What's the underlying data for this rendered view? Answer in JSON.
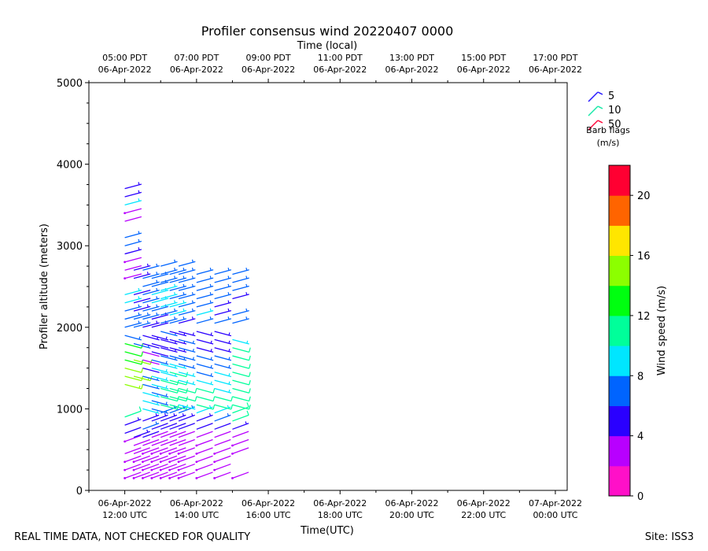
{
  "chart_data": {
    "type": "wind_barbs",
    "title": "Profiler consensus wind 20220407 0000",
    "xlabel": "Time(UTC)",
    "xlabel_top": "Time (local)",
    "ylabel": "Profiler altitude (meters)",
    "ylim": [
      0,
      5000
    ],
    "yticks": [
      0,
      1000,
      2000,
      3000,
      4000,
      5000
    ],
    "ytick_labels": [
      "0",
      "1000",
      "2000",
      "3000",
      "4000",
      "5000"
    ],
    "xlim_hours_utc": [
      11.0,
      24.33
    ],
    "xticks_hours_utc": [
      12,
      14,
      16,
      18,
      20,
      22,
      24
    ],
    "xtick_labels_bottom": [
      [
        "06-Apr-2022",
        "12:00 UTC"
      ],
      [
        "06-Apr-2022",
        "14:00 UTC"
      ],
      [
        "06-Apr-2022",
        "16:00 UTC"
      ],
      [
        "06-Apr-2022",
        "18:00 UTC"
      ],
      [
        "06-Apr-2022",
        "20:00 UTC"
      ],
      [
        "06-Apr-2022",
        "22:00 UTC"
      ],
      [
        "07-Apr-2022",
        "00:00 UTC"
      ]
    ],
    "xtick_labels_top": [
      [
        "05:00 PDT",
        "06-Apr-2022"
      ],
      [
        "07:00 PDT",
        "06-Apr-2022"
      ],
      [
        "09:00 PDT",
        "06-Apr-2022"
      ],
      [
        "11:00 PDT",
        "06-Apr-2022"
      ],
      [
        "13:00 PDT",
        "06-Apr-2022"
      ],
      [
        "15:00 PDT",
        "06-Apr-2022"
      ],
      [
        "17:00 PDT",
        "06-Apr-2022"
      ]
    ],
    "barb_legend": {
      "entries": [
        {
          "label": "5",
          "color": "#2a1cff"
        },
        {
          "label": "10",
          "color": "#19e8a8"
        },
        {
          "label": "50",
          "color": "#ff0a3c"
        }
      ],
      "caption_line1": "Barb flags",
      "caption_line2": "(m/s)"
    },
    "colorbar": {
      "label": "Wind speed (m/s)",
      "range": [
        0,
        22
      ],
      "ticks": [
        0,
        4,
        8,
        12,
        16,
        20
      ],
      "tick_labels": [
        "0",
        "4",
        "8",
        "12",
        "16",
        "20"
      ],
      "colors": [
        "#ff10c8",
        "#b800ff",
        "#2a00ff",
        "#0064ff",
        "#00e6ff",
        "#00ff9a",
        "#00ff10",
        "#8cff00",
        "#ffe600",
        "#ff6400",
        "#ff0032"
      ]
    },
    "series": [
      {
        "time_utc": 12.0,
        "altitudes": [
          150,
          250,
          350,
          450,
          600,
          700,
          800,
          900,
          1300,
          1400,
          1500,
          1600,
          1700,
          1800,
          1900,
          2000,
          2100,
          2200,
          2300,
          2400,
          2600,
          2700,
          2800,
          2900,
          3000,
          3100,
          3300,
          3400,
          3500,
          3600,
          3700
        ],
        "speeds": [
          2,
          2,
          2,
          3,
          2,
          4,
          5,
          11,
          15,
          14,
          14,
          13,
          12,
          12,
          6,
          7,
          6,
          7,
          8,
          9,
          2,
          3,
          2,
          5,
          6,
          6,
          3,
          2,
          8,
          5,
          5
        ]
      },
      {
        "time_utc": 12.25,
        "altitudes": [
          150,
          250,
          350,
          450,
          550,
          650,
          1400,
          1600,
          1800,
          2000,
          2100,
          2200,
          2300,
          2400,
          2600,
          2700
        ],
        "speeds": [
          2,
          2,
          2,
          3,
          3,
          5,
          15,
          14,
          6,
          6,
          6,
          5,
          4,
          4,
          5,
          5
        ]
      },
      {
        "time_utc": 12.5,
        "altitudes": [
          150,
          250,
          350,
          450,
          550,
          650,
          750,
          850,
          1000,
          1100,
          1200,
          1300,
          1400,
          1500,
          1600,
          1700,
          1800,
          1900,
          2000,
          2100,
          2200,
          2300,
          2400,
          2500,
          2600,
          2700
        ],
        "speeds": [
          2,
          2,
          2,
          2,
          3,
          4,
          6,
          5,
          9,
          9,
          8,
          7,
          6,
          4,
          3,
          3,
          4,
          5,
          5,
          6,
          6,
          6,
          7,
          7,
          6,
          6
        ]
      },
      {
        "time_utc": 12.75,
        "altitudes": [
          150,
          250,
          350,
          450,
          550,
          650,
          750,
          850,
          1000,
          1100,
          1200,
          1300,
          1400,
          1500,
          1600,
          1700,
          1800,
          1900,
          2000,
          2100,
          2200,
          2300,
          2400,
          2500,
          2600
        ],
        "speeds": [
          2,
          2,
          2,
          2,
          3,
          3,
          4,
          5,
          7,
          6,
          6,
          8,
          9,
          9,
          6,
          4,
          4,
          5,
          5,
          5,
          6,
          8,
          8,
          7,
          6
        ]
      },
      {
        "time_utc": 13.0,
        "altitudes": [
          150,
          250,
          350,
          450,
          550,
          650,
          750,
          850,
          950,
          1050,
          1150,
          1250,
          1350,
          1450,
          1550,
          1650,
          1750,
          1850,
          1950,
          2050,
          2150,
          2250,
          2350,
          2450,
          2550,
          2650,
          2750
        ],
        "speeds": [
          2,
          2,
          2,
          2,
          3,
          3,
          4,
          5,
          7,
          10,
          11,
          10,
          10,
          9,
          8,
          6,
          5,
          5,
          6,
          6,
          6,
          8,
          8,
          9,
          7,
          6,
          6
        ]
      },
      {
        "time_utc": 13.25,
        "altitudes": [
          150,
          250,
          350,
          450,
          550,
          650,
          750,
          850,
          950,
          1050,
          1150,
          1250,
          1350,
          1450,
          1550,
          1650,
          1750,
          1850,
          1950,
          2050,
          2150,
          2250,
          2350,
          2450,
          2550,
          2650
        ],
        "speeds": [
          2,
          2,
          2,
          2,
          3,
          3,
          4,
          5,
          7,
          10,
          11,
          11,
          10,
          10,
          8,
          7,
          5,
          5,
          5,
          6,
          8,
          8,
          7,
          7,
          6,
          6
        ]
      },
      {
        "time_utc": 13.5,
        "altitudes": [
          150,
          250,
          350,
          450,
          550,
          650,
          750,
          850,
          950,
          1050,
          1150,
          1250,
          1350,
          1450,
          1550,
          1650,
          1750,
          1850,
          1950,
          2050,
          2150,
          2250,
          2350,
          2450,
          2550,
          2650,
          2750
        ],
        "speeds": [
          2,
          2,
          2,
          2,
          3,
          3,
          4,
          5,
          6,
          9,
          10,
          10,
          9,
          8,
          7,
          7,
          6,
          6,
          5,
          5,
          6,
          7,
          7,
          6,
          6,
          6,
          6
        ]
      },
      {
        "time_utc": 14.0,
        "altitudes": [
          150,
          250,
          350,
          450,
          550,
          650,
          750,
          850,
          950,
          1050,
          1150,
          1250,
          1350,
          1450,
          1550,
          1650,
          1750,
          1850,
          1950,
          2050,
          2150,
          2250,
          2350,
          2450,
          2550,
          2650
        ],
        "speeds": [
          2,
          2,
          2,
          2,
          2,
          3,
          4,
          5,
          8,
          10,
          11,
          10,
          9,
          7,
          7,
          6,
          5,
          5,
          5,
          7,
          8,
          7,
          7,
          6,
          6,
          6
        ]
      },
      {
        "time_utc": 14.5,
        "altitudes": [
          150,
          250,
          350,
          450,
          550,
          650,
          750,
          850,
          950,
          1050,
          1150,
          1250,
          1350,
          1450,
          1550,
          1650,
          1750,
          1850,
          1950,
          2050,
          2150,
          2250,
          2350,
          2450,
          2550,
          2650
        ],
        "speeds": [
          2,
          2,
          2,
          2,
          3,
          3,
          4,
          6,
          8,
          10,
          10,
          9,
          9,
          8,
          6,
          6,
          5,
          5,
          5,
          6,
          5,
          5,
          6,
          6,
          6,
          6
        ]
      },
      {
        "time_utc": 15.0,
        "altitudes": [
          150,
          450,
          550,
          650,
          750,
          850,
          950,
          1050,
          1150,
          1250,
          1350,
          1450,
          1550,
          1650,
          1750,
          1850,
          2050,
          2150,
          2350,
          2450,
          2550,
          2650
        ],
        "speeds": [
          2,
          2,
          2,
          3,
          5,
          10,
          10,
          11,
          11,
          11,
          11,
          11,
          11,
          10,
          10,
          9,
          6,
          6,
          5,
          6,
          6,
          6
        ]
      }
    ]
  },
  "footer": {
    "left": "REAL TIME DATA, NOT CHECKED FOR QUALITY",
    "right": "Site: ISS3"
  }
}
